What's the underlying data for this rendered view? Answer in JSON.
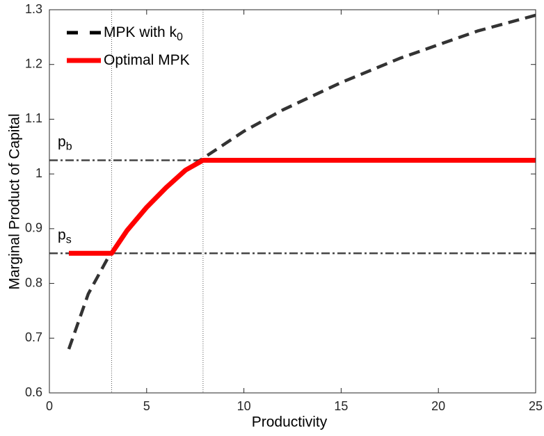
{
  "chart_data": {
    "type": "line",
    "xlabel": "Productivity",
    "ylabel": "Marginal Product of Capital",
    "xlim": [
      0,
      25
    ],
    "xticks": [
      0,
      5,
      10,
      15,
      20,
      25
    ],
    "ylim": [
      0.6,
      1.3
    ],
    "yticks": [
      0.6,
      0.7,
      0.8,
      0.9,
      1,
      1.1,
      1.2,
      1.3
    ],
    "box": true,
    "legend": "upper left",
    "series": [
      {
        "name": "MPK with k",
        "name_subscript": "0",
        "color": "#000000",
        "style": "dashed",
        "x": [
          1,
          2,
          3,
          4,
          5,
          6,
          7,
          8,
          10,
          12,
          15,
          18,
          20,
          22,
          25
        ],
        "values": [
          0.68,
          0.781,
          0.846,
          0.897,
          0.939,
          0.975,
          1.007,
          1.031,
          1.078,
          1.117,
          1.167,
          1.211,
          1.236,
          1.261,
          1.29
        ]
      },
      {
        "name": "Optimal MPK",
        "color": "#ff0000",
        "style": "solid",
        "x": [
          1,
          3.2,
          4,
          5,
          6,
          7,
          7.9,
          25
        ],
        "values": [
          0.855,
          0.855,
          0.897,
          0.939,
          0.975,
          1.007,
          1.025,
          1.025
        ]
      }
    ],
    "reference_lines": [
      {
        "label": "p",
        "label_subscript": "b",
        "value": 1.025
      },
      {
        "label": "p",
        "label_subscript": "s",
        "value": 0.855
      }
    ],
    "vertical_lines": [
      3.2,
      7.9
    ]
  }
}
